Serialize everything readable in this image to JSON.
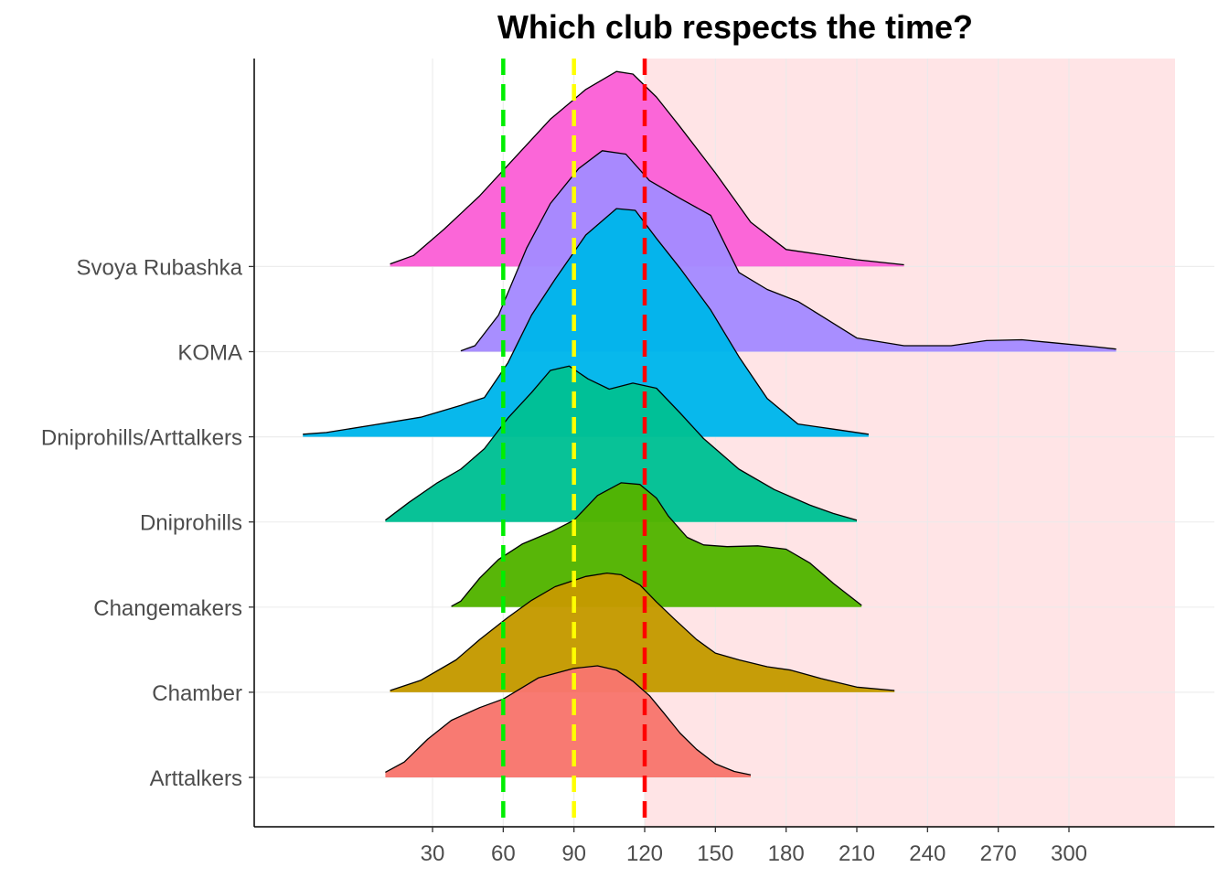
{
  "chart_data": {
    "type": "ridgeline",
    "title": "Which club respects the time?",
    "xlabel": "",
    "ylabel": "",
    "xlim": [
      -25,
      345
    ],
    "x_ticks": [
      30,
      60,
      90,
      120,
      150,
      180,
      210,
      240,
      270,
      300
    ],
    "grid": true,
    "legend": "none",
    "shaded_region": {
      "from": 120,
      "to": 345,
      "color": "#ffe4e6"
    },
    "reference_lines": [
      {
        "x": 60,
        "color": "#00ee00"
      },
      {
        "x": 90,
        "color": "#ffff00"
      },
      {
        "x": 120,
        "color": "#ff0000"
      }
    ],
    "series": [
      {
        "name": "Arttalkers",
        "color": "#f8766d",
        "density": [
          [
            10,
            0.06
          ],
          [
            18,
            0.18
          ],
          [
            28,
            0.45
          ],
          [
            38,
            0.67
          ],
          [
            50,
            0.82
          ],
          [
            60,
            0.92
          ],
          [
            75,
            1.17
          ],
          [
            90,
            1.28
          ],
          [
            100,
            1.31
          ],
          [
            108,
            1.26
          ],
          [
            115,
            1.13
          ],
          [
            122,
            0.96
          ],
          [
            128,
            0.76
          ],
          [
            135,
            0.52
          ],
          [
            142,
            0.33
          ],
          [
            150,
            0.16
          ],
          [
            158,
            0.07
          ],
          [
            165,
            0.03
          ]
        ]
      },
      {
        "name": "Chamber",
        "color": "#c49a00",
        "density": [
          [
            12,
            0.02
          ],
          [
            25,
            0.14
          ],
          [
            40,
            0.38
          ],
          [
            50,
            0.62
          ],
          [
            62,
            0.88
          ],
          [
            72,
            1.08
          ],
          [
            82,
            1.24
          ],
          [
            95,
            1.36
          ],
          [
            104,
            1.4
          ],
          [
            110,
            1.38
          ],
          [
            118,
            1.26
          ],
          [
            125,
            1.06
          ],
          [
            133,
            0.85
          ],
          [
            142,
            0.62
          ],
          [
            150,
            0.46
          ],
          [
            160,
            0.38
          ],
          [
            172,
            0.3
          ],
          [
            182,
            0.26
          ],
          [
            195,
            0.16
          ],
          [
            210,
            0.06
          ],
          [
            226,
            0.02
          ]
        ]
      },
      {
        "name": "Changemakers",
        "color": "#53b400",
        "density": [
          [
            38,
            0.01
          ],
          [
            42,
            0.07
          ],
          [
            50,
            0.34
          ],
          [
            58,
            0.56
          ],
          [
            68,
            0.74
          ],
          [
            80,
            0.88
          ],
          [
            90,
            1.02
          ],
          [
            100,
            1.31
          ],
          [
            110,
            1.46
          ],
          [
            118,
            1.44
          ],
          [
            125,
            1.28
          ],
          [
            130,
            1.07
          ],
          [
            138,
            0.82
          ],
          [
            145,
            0.73
          ],
          [
            155,
            0.71
          ],
          [
            168,
            0.72
          ],
          [
            180,
            0.68
          ],
          [
            190,
            0.52
          ],
          [
            200,
            0.28
          ],
          [
            212,
            0.02
          ]
        ]
      },
      {
        "name": "Dniprohills",
        "color": "#00c094",
        "density": [
          [
            10,
            0.02
          ],
          [
            20,
            0.23
          ],
          [
            32,
            0.46
          ],
          [
            42,
            0.62
          ],
          [
            52,
            0.86
          ],
          [
            62,
            1.22
          ],
          [
            72,
            1.52
          ],
          [
            80,
            1.78
          ],
          [
            88,
            1.83
          ],
          [
            96,
            1.68
          ],
          [
            105,
            1.56
          ],
          [
            115,
            1.63
          ],
          [
            125,
            1.57
          ],
          [
            135,
            1.28
          ],
          [
            145,
            0.98
          ],
          [
            160,
            0.62
          ],
          [
            175,
            0.38
          ],
          [
            190,
            0.2
          ],
          [
            200,
            0.1
          ],
          [
            210,
            0.02
          ]
        ]
      },
      {
        "name": "Dniprohills/Arttalkers",
        "color": "#00b6eb",
        "density": [
          [
            -25,
            0.03
          ],
          [
            -15,
            0.05
          ],
          [
            5,
            0.14
          ],
          [
            25,
            0.23
          ],
          [
            42,
            0.37
          ],
          [
            52,
            0.46
          ],
          [
            62,
            0.87
          ],
          [
            72,
            1.43
          ],
          [
            82,
            1.85
          ],
          [
            95,
            2.37
          ],
          [
            108,
            2.68
          ],
          [
            116,
            2.66
          ],
          [
            125,
            2.33
          ],
          [
            135,
            1.98
          ],
          [
            148,
            1.49
          ],
          [
            160,
            0.94
          ],
          [
            172,
            0.45
          ],
          [
            185,
            0.15
          ],
          [
            200,
            0.09
          ],
          [
            215,
            0.03
          ]
        ]
      },
      {
        "name": "KOMA",
        "color": "#a58aff",
        "density": [
          [
            42,
            0.01
          ],
          [
            48,
            0.07
          ],
          [
            58,
            0.43
          ],
          [
            70,
            1.22
          ],
          [
            80,
            1.74
          ],
          [
            92,
            2.15
          ],
          [
            102,
            2.36
          ],
          [
            112,
            2.32
          ],
          [
            122,
            2.01
          ],
          [
            135,
            1.8
          ],
          [
            148,
            1.6
          ],
          [
            160,
            0.93
          ],
          [
            172,
            0.73
          ],
          [
            185,
            0.59
          ],
          [
            195,
            0.42
          ],
          [
            210,
            0.16
          ],
          [
            230,
            0.07
          ],
          [
            250,
            0.07
          ],
          [
            265,
            0.13
          ],
          [
            280,
            0.14
          ],
          [
            295,
            0.1
          ],
          [
            310,
            0.06
          ],
          [
            320,
            0.03
          ]
        ]
      },
      {
        "name": "Svoya Rubashka",
        "color": "#fb61d7",
        "density": [
          [
            12,
            0.03
          ],
          [
            22,
            0.13
          ],
          [
            35,
            0.44
          ],
          [
            50,
            0.83
          ],
          [
            65,
            1.28
          ],
          [
            80,
            1.73
          ],
          [
            95,
            2.08
          ],
          [
            108,
            2.29
          ],
          [
            115,
            2.26
          ],
          [
            125,
            1.99
          ],
          [
            135,
            1.64
          ],
          [
            150,
            1.1
          ],
          [
            165,
            0.52
          ],
          [
            180,
            0.2
          ],
          [
            195,
            0.14
          ],
          [
            210,
            0.08
          ],
          [
            230,
            0.02
          ]
        ]
      }
    ]
  }
}
